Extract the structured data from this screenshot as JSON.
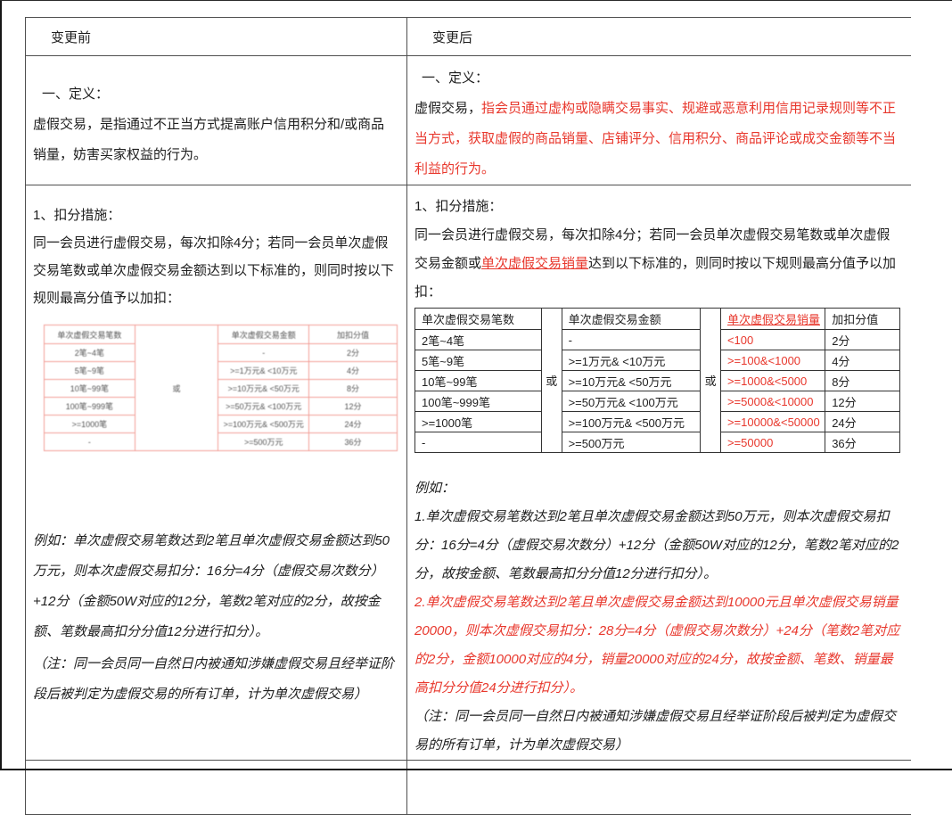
{
  "header": {
    "before": "变更前",
    "after": "变更后"
  },
  "colors": {
    "red_text": "#e8372c",
    "outer_border": "#4f4f4f",
    "inner_border": "#333333",
    "blurry_border": "#f29a92"
  },
  "before": {
    "definition": {
      "title": "一、定义：",
      "body": "虚假交易，是指通过不正当方式提高账户信用积分和/或商品销量，妨害买家权益的行为。"
    },
    "measures": {
      "title": "1、扣分措施：",
      "body": "同一会员进行虚假交易，每次扣除4分；若同一会员单次虚假交易笔数或单次虚假交易金额达到以下标准的，则同时按以下规则最高分值予以加扣：",
      "table": {
        "col_count": "单次虚假交易笔数",
        "col_amount": "单次虚假交易金额",
        "col_score": "加扣分值",
        "or_label": "或",
        "rows": [
          {
            "count": "2笔~4笔",
            "amount": "-",
            "score": "2分"
          },
          {
            "count": "5笔~9笔",
            "amount": ">=1万元& <10万元",
            "score": "4分"
          },
          {
            "count": "10笔~99笔",
            "amount": ">=10万元& <50万元",
            "score": "8分"
          },
          {
            "count": "100笔~999笔",
            "amount": ">=50万元& <100万元",
            "score": "12分"
          },
          {
            "count": ">=1000笔",
            "amount": ">=100万元& <500万元",
            "score": "24分"
          },
          {
            "count": "-",
            "amount": ">=500万元",
            "score": "36分"
          }
        ]
      },
      "example": "例如：单次虚假交易笔数达到2笔且单次虚假交易金额达到50万元，则本次虚假交易扣分：16分=4分（虚假交易次数分）+12分（金额50W对应的12分，笔数2笔对应的2分，故按金额、笔数最高扣分分值12分进行扣分）。",
      "note": "（注：同一会员同一自然日内被通知涉嫌虚假交易且经举证阶段后被判定为虚假交易的所有订单，计为单次虚假交易）"
    }
  },
  "after": {
    "definition": {
      "title": "一、定义：",
      "lead": "虚假交易，",
      "red": "指会员通过虚构或隐瞒交易事实、规避或恶意利用信用记录规则等不正当方式，获取虚假的商品销量、店铺评分、信用积分、商品评论或成交金额等不当利益的行为。"
    },
    "measures": {
      "title": "1、扣分措施：",
      "body_1": "同一会员进行虚假交易，每次扣除4分；若同一会员单次虚假交易笔数或单次虚假交易金额或",
      "body_red": "单次虚假交易销量",
      "body_2": "达到以下标准的，则同时按以下规则最高分值予以加扣：",
      "table": {
        "col_count": "单次虚假交易笔数",
        "col_amount": "单次虚假交易金额",
        "col_sales": "单次虚假交易销量",
        "col_score": "加扣分值",
        "or_label": "或",
        "rows": [
          {
            "count": "2笔~4笔",
            "amount": "-",
            "sales": "<100",
            "score": "2分"
          },
          {
            "count": "5笔~9笔",
            "amount": ">=1万元& <10万元",
            "sales": ">=100&<1000",
            "score": "4分"
          },
          {
            "count": "10笔~99笔",
            "amount": ">=10万元& <50万元",
            "sales": ">=1000&<5000",
            "score": "8分"
          },
          {
            "count": "100笔~999笔",
            "amount": ">=50万元& <100万元",
            "sales": ">=5000&<10000",
            "score": "12分"
          },
          {
            "count": ">=1000笔",
            "amount": ">=100万元& <500万元",
            "sales": ">=10000&<50000",
            "score": "24分"
          },
          {
            "count": "-",
            "amount": ">=500万元",
            "sales": ">=50000",
            "score": "36分"
          }
        ]
      },
      "example_label": "例如：",
      "example_1": "1.单次虚假交易笔数达到2笔且单次虚假交易金额达到50万元，则本次虚假交易扣分：16分=4分（虚假交易次数分）+12分（金额50W对应的12分，笔数2笔对应的2分，故按金额、笔数最高扣分分值12分进行扣分）。",
      "example_2": "2.单次虚假交易笔数达到2笔且单次虚假交易金额达到10000元且单次虚假交易销量20000，则本次虚假交易扣分：28分=4分（虚假交易次数分）+24分（笔数2笔对应的2分，金额10000对应的4分，销量20000对应的24分，故按金额、笔数、销量最高扣分分值24分进行扣分）。",
      "note": "（注：同一会员同一自然日内被通知涉嫌虚假交易且经举证阶段后被判定为虚假交易的所有订单，计为单次虚假交易）"
    }
  }
}
